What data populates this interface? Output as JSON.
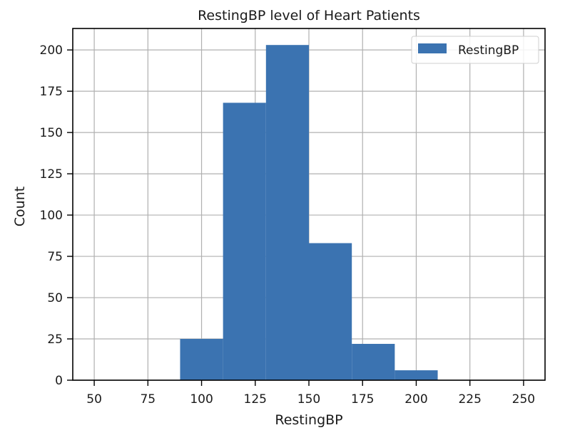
{
  "chart_data": {
    "type": "bar",
    "title": "RestingBP level of Heart Patients",
    "xlabel": "RestingBP",
    "ylabel": "Count",
    "xlim": [
      40,
      260
    ],
    "ylim": [
      0,
      213
    ],
    "xticks": [
      50,
      75,
      100,
      125,
      150,
      175,
      200,
      225,
      250
    ],
    "yticks": [
      0,
      25,
      50,
      75,
      100,
      125,
      150,
      175,
      200
    ],
    "grid": true,
    "legend": {
      "position": "top-right",
      "entries": [
        "RestingBP"
      ]
    },
    "series": [
      {
        "name": "RestingBP",
        "color": "#3b73b1",
        "bins": [
          {
            "x0": 90,
            "x1": 110,
            "count": 25
          },
          {
            "x0": 110,
            "x1": 130,
            "count": 168
          },
          {
            "x0": 130,
            "x1": 150,
            "count": 203
          },
          {
            "x0": 150,
            "x1": 170,
            "count": 83
          },
          {
            "x0": 170,
            "x1": 190,
            "count": 22
          },
          {
            "x0": 190,
            "x1": 210,
            "count": 6
          }
        ]
      }
    ]
  }
}
